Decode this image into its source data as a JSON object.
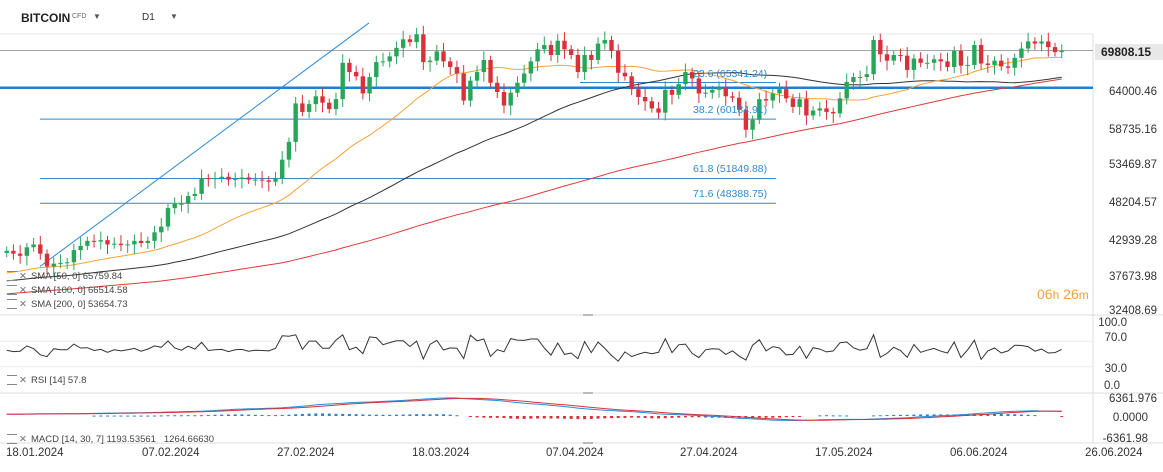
{
  "header": {
    "symbol": "BITCOIN",
    "cfd": "CFD",
    "timeframe": "D1"
  },
  "price_tag": "69808.15",
  "timer": {
    "hours": "06",
    "h": "h",
    "minutes": "26",
    "m": "m"
  },
  "indicators": {
    "sma50": "SMA [50, 0] 65759.84",
    "sma100": "SMA [100, 0] 66514.58",
    "sma200": "SMA [200, 0] 53654.73",
    "rsi": "RSI [14] 57.8",
    "macd": "MACD [14, 30, 7] 1193.53561",
    "macd2": "1264.66630"
  },
  "colors": {
    "up": "#27a65a",
    "down": "#d9313a",
    "sma50": "#f5a23a",
    "sma100": "#333333",
    "sma200": "#e03a3a",
    "fib": "#2a8ad8",
    "hline": "#1e7fd8"
  },
  "chart_data": {
    "type": "candlestick",
    "title": "BITCOIN CFD D1",
    "price_axis": [
      "69808.15",
      "64000.46",
      "58735.16",
      "53469.87",
      "48204.57",
      "42939.28",
      "37673.98",
      "32408.69"
    ],
    "rsi_axis": [
      "100.0",
      "70.0",
      "30.0",
      "0.0"
    ],
    "macd_axis": [
      "6361.976",
      "0.0000",
      "-6361.98"
    ],
    "x_dates": [
      "18.01.2024",
      "07.02.2024",
      "27.02.2024",
      "18.03.2024",
      "07.04.2024",
      "27.04.2024",
      "17.05.2024",
      "06.06.2024",
      "26.06.2024"
    ],
    "fib_levels": [
      {
        "label": "23.6 (65341.24)",
        "value": 65341.24
      },
      {
        "label": "38.2 (60184.91)",
        "value": 60184.91
      },
      {
        "label": "61.8 (51849.88)",
        "value": 51849.88
      },
      {
        "label": "71.6 (48388.75)",
        "value": 48388.75
      }
    ],
    "horizontal_line": 64600,
    "last_price": 69808.15,
    "closes": [
      41700,
      41300,
      41000,
      42200,
      42600,
      41300,
      39500,
      39900,
      40000,
      40100,
      41800,
      42400,
      43100,
      43000,
      43200,
      42600,
      42700,
      42500,
      42600,
      43100,
      42800,
      43100,
      44300,
      45100,
      47700,
      48300,
      48300,
      49400,
      49700,
      51900,
      51800,
      51900,
      52100,
      51700,
      51800,
      52000,
      51700,
      51700,
      51600,
      51400,
      51900,
      54500,
      57000,
      62400,
      61200,
      62300,
      63400,
      62500,
      61600,
      63000,
      68100,
      66800,
      66200,
      63800,
      66100,
      68200,
      68300,
      69000,
      70200,
      71400,
      71000,
      72100,
      68200,
      68400,
      69700,
      68300,
      67500,
      66600,
      62800,
      65600,
      66800,
      68500,
      65300,
      64000,
      62100,
      63900,
      65300,
      66600,
      68300,
      70000,
      70600,
      69200,
      71200,
      70000,
      69200,
      66800,
      69200,
      68500,
      70800,
      71300,
      69800,
      66700,
      66200,
      64400,
      63300,
      62700,
      61700,
      61100,
      64300,
      63600,
      65100,
      66800,
      65900,
      63800,
      63900,
      64300,
      64600,
      63400,
      63200,
      61500,
      58700,
      60100,
      63000,
      62800,
      63800,
      64400,
      63100,
      61900,
      63000,
      60700,
      61400,
      61700,
      61200,
      61000,
      63100,
      65400,
      66100,
      66100,
      66500,
      71300,
      69300,
      68400,
      69200,
      69100,
      67100,
      68700,
      68100,
      68100,
      68600,
      68300,
      67500,
      69800,
      67700,
      67800,
      70600,
      68000,
      67800,
      68400,
      67600,
      67400,
      68800,
      70100,
      71100,
      70800,
      71100,
      70300,
      69600,
      69800
    ]
  }
}
